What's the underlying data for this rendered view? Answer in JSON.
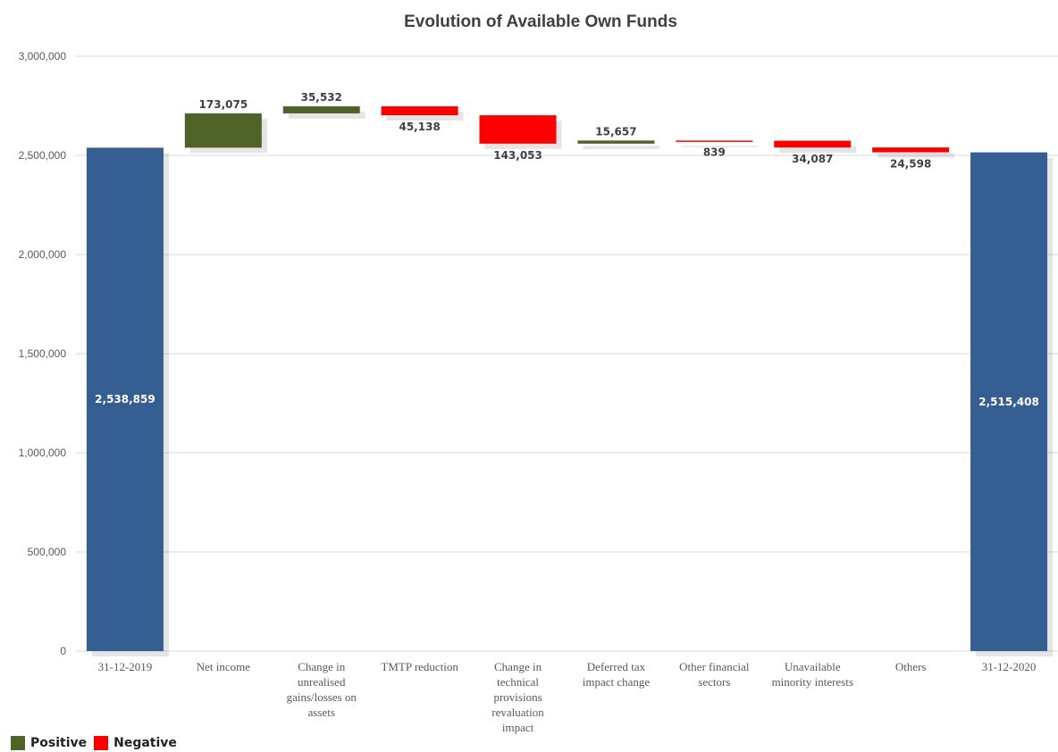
{
  "chart_data": {
    "type": "waterfall",
    "title": "Evolution of Available Own Funds",
    "xlabel": "",
    "ylabel": "",
    "ylim": [
      0,
      3000000
    ],
    "y_ticks": [
      "0",
      "500,000",
      "1,000,000",
      "1,500,000",
      "2,000,000",
      "2,500,000",
      "3,000,000"
    ],
    "y_tick_values": [
      0,
      500000,
      1000000,
      1500000,
      2000000,
      2500000,
      3000000
    ],
    "grid": true,
    "legend_position": "bottom-left",
    "colors": {
      "total": "#355E92",
      "positive": "#4F6228",
      "negative": "#FF0000"
    },
    "categories": [
      {
        "label_lines": [
          "31-12-2019"
        ],
        "kind": "total",
        "value": 2538859,
        "label": "2,538,859"
      },
      {
        "label_lines": [
          "Net income"
        ],
        "kind": "positive",
        "value": 173075,
        "label": "173,075"
      },
      {
        "label_lines": [
          "Change in",
          "unrealised",
          "gains/losses on",
          "assets"
        ],
        "kind": "positive",
        "value": 35532,
        "label": "35,532"
      },
      {
        "label_lines": [
          "TMTP reduction"
        ],
        "kind": "negative",
        "value": -45138,
        "label": "45,138"
      },
      {
        "label_lines": [
          "Change in",
          "technical",
          "provisions",
          "revaluation",
          "impact"
        ],
        "kind": "negative",
        "value": -143053,
        "label": "143,053"
      },
      {
        "label_lines": [
          "Deferred tax",
          "impact change"
        ],
        "kind": "positive",
        "value": 15657,
        "label": "15,657"
      },
      {
        "label_lines": [
          "Other financial",
          "sectors"
        ],
        "kind": "negative",
        "value": -839,
        "label": "839"
      },
      {
        "label_lines": [
          "Unavailable",
          "minority interests"
        ],
        "kind": "negative",
        "value": -34087,
        "label": "34,087"
      },
      {
        "label_lines": [
          "Others"
        ],
        "kind": "negative",
        "value": -24598,
        "label": "24,598"
      },
      {
        "label_lines": [
          "31-12-2020"
        ],
        "kind": "total",
        "value": 2515408,
        "label": "2,515,408"
      }
    ],
    "legend": [
      {
        "name": "Positive",
        "color": "#4F6228"
      },
      {
        "name": "Negative",
        "color": "#FF0000"
      }
    ]
  }
}
